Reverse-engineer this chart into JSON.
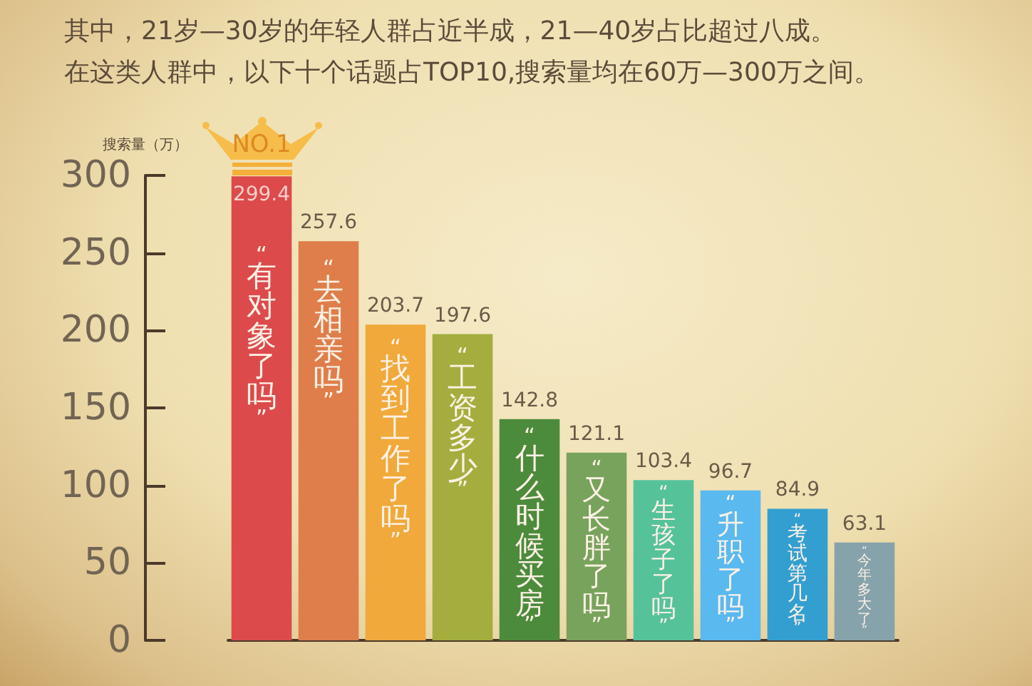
{
  "chart_data": {
    "type": "bar",
    "title": "其中，21岁—30岁的年轻人群占近半成，21—40岁占比超过八成。",
    "subtitle": "在这类人群中，以下十个话题占TOP10,搜索量均在60万—300万之间。",
    "ylabel": "搜索量（万）",
    "categories": [
      "“有对象了吗”",
      "“去相亲吗”",
      "“找到工作了吗”",
      "“工资多少”",
      "“什么时候买房”",
      "“又长胖了吗”",
      "“生孩子了吗”",
      "“升职了吗”",
      "“考试第几名”",
      "“今年多大了”"
    ],
    "values": [
      299.4,
      257.6,
      203.7,
      197.6,
      142.8,
      121.1,
      103.4,
      96.7,
      84.9,
      63.1
    ],
    "colors": [
      "#dc4a4c",
      "#df7e4b",
      "#f0a93a",
      "#a3ae3e",
      "#4c8b3c",
      "#78a35c",
      "#56c29a",
      "#5ab9ef",
      "#339fd0",
      "#86a3ab"
    ],
    "ylim": [
      0,
      300
    ],
    "yticks": [
      0,
      50,
      100,
      150,
      200,
      250,
      300
    ],
    "data_labels": true,
    "grid": false,
    "annotations": [
      "NO.1"
    ]
  }
}
